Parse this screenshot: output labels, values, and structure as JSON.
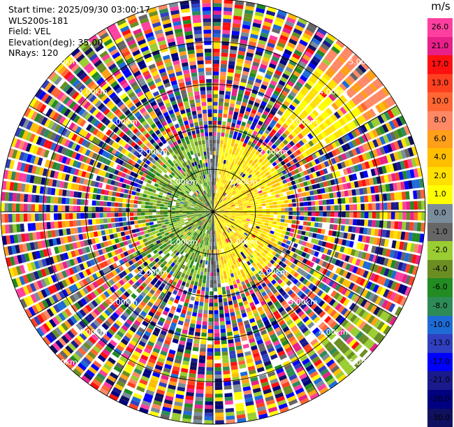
{
  "info": {
    "start_time": "Start time: 2025/09/30 03:00:17",
    "site": "WLS200s-181",
    "field": "Field: VEL",
    "elevation": "Elevation(deg): 35.00",
    "nrays": "NRays: 120"
  },
  "chart_data": {
    "type": "heatmap",
    "subtype": "polar-ppi",
    "field": "VEL",
    "elevation_deg": 35.0,
    "nrays": 120,
    "range_rings": [
      "1.00km",
      "2.00km",
      "3.00km",
      "4.00km",
      "5.00km"
    ],
    "ring_values_km": [
      1,
      2,
      3,
      4,
      5
    ],
    "max_range_km": 5.0,
    "colorbar": {
      "unit": "m/s",
      "labels": [
        "26.0",
        "21.0",
        "17.0",
        "13.0",
        "10.0",
        "8.0",
        "6.0",
        "4.0",
        "2.0",
        "1.0",
        "0.0",
        "-1.0",
        "-2.0",
        "-4.0",
        "-6.0",
        "-8.0",
        "-10.0",
        "-13.0",
        "-17.0",
        "-21.0",
        "-26.0",
        "-30.0"
      ],
      "colors": [
        "#ff3fa0",
        "#e8208a",
        "#ff1010",
        "#ff4020",
        "#ff6633",
        "#ff8866",
        "#ff9f1a",
        "#ffbf00",
        "#ffe000",
        "#ffff00",
        "#7b8c9a",
        "#666666",
        "#9acd32",
        "#6b8e23",
        "#228b22",
        "#2e8b57",
        "#1e6bd6",
        "#3040c0",
        "#0000ff",
        "#1a1a8c",
        "#000080",
        "#101060"
      ]
    }
  }
}
